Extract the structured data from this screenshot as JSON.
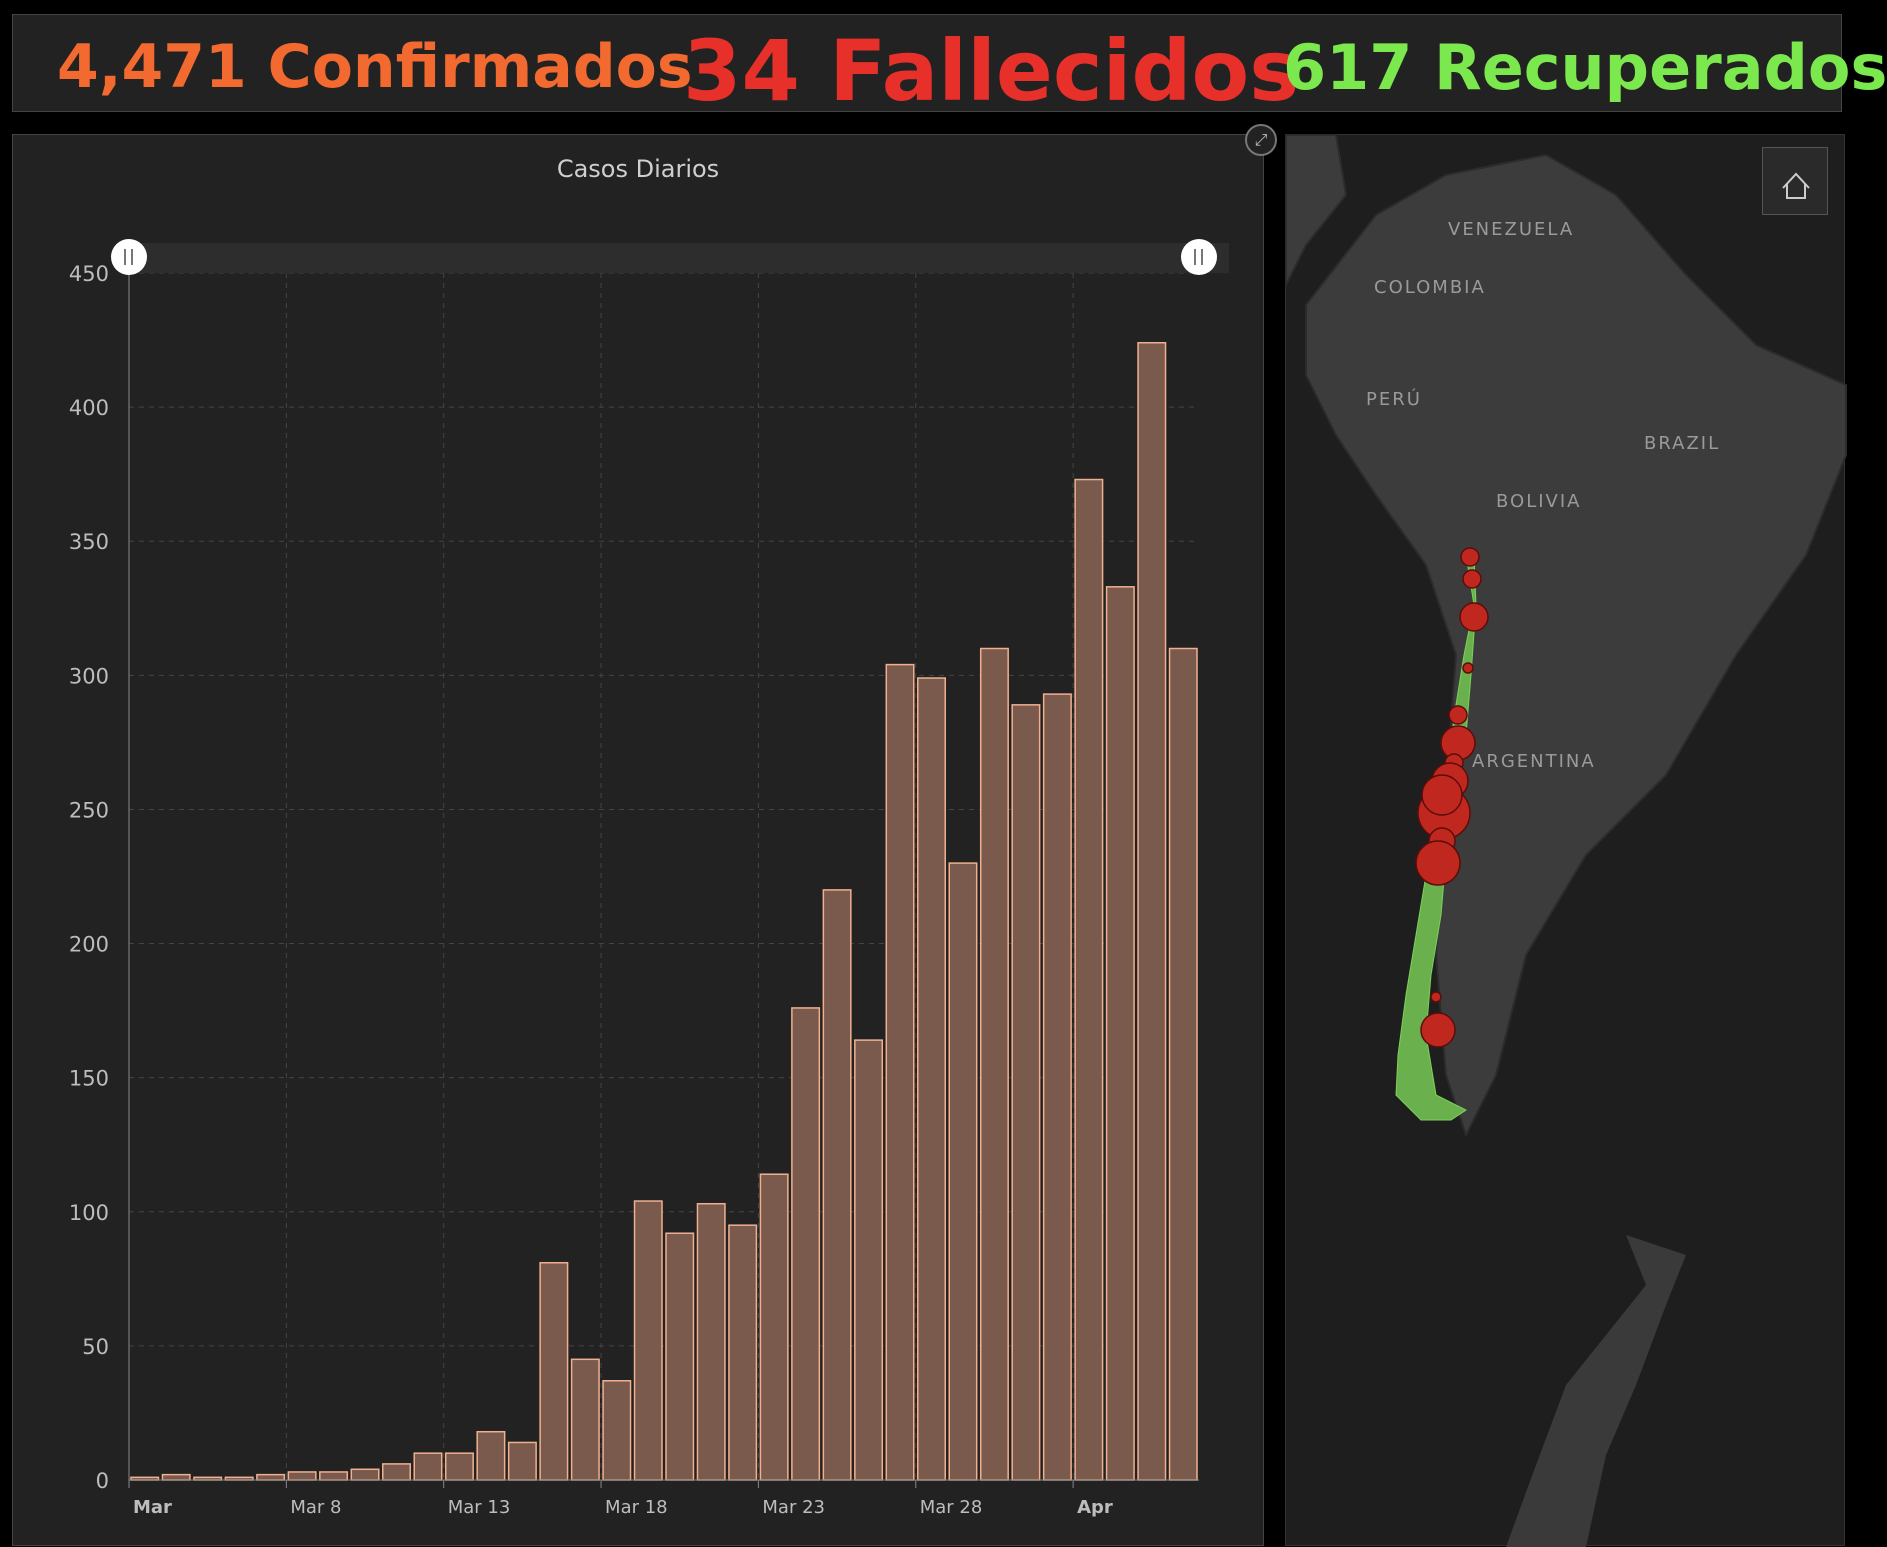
{
  "stats": {
    "confirmed": "4,471 Confirmados",
    "deaths": "34 Fallecidos",
    "recovered": "617 Recuperados",
    "confirmed_color": "#f26a2f",
    "deaths_color": "#e8302a",
    "recovered_color": "#7be84e"
  },
  "map": {
    "labels": [
      "VENEZUELA",
      "COLOMBIA",
      "PERÚ",
      "BRAZIL",
      "BOLIVIA",
      "ARGENTINA"
    ],
    "home_icon": "home-icon",
    "expand_icon": "expand-icon"
  },
  "chart_data": {
    "type": "bar",
    "title": "Casos Diarios",
    "xlabel": "",
    "ylabel": "",
    "ylim": [
      0,
      450
    ],
    "yticks": [
      0,
      50,
      100,
      150,
      200,
      250,
      300,
      350,
      400,
      450
    ],
    "xtick_labels": [
      "Mar",
      "Mar 8",
      "Mar 13",
      "Mar 18",
      "Mar 23",
      "Mar 28",
      "Apr"
    ],
    "categories": [
      "Mar 3",
      "Mar 4",
      "Mar 5",
      "Mar 6",
      "Mar 7",
      "Mar 8",
      "Mar 9",
      "Mar 10",
      "Mar 11",
      "Mar 12",
      "Mar 13",
      "Mar 14",
      "Mar 15",
      "Mar 16",
      "Mar 17",
      "Mar 18",
      "Mar 19",
      "Mar 20",
      "Mar 21",
      "Mar 22",
      "Mar 23",
      "Mar 24",
      "Mar 25",
      "Mar 26",
      "Mar 27",
      "Mar 28",
      "Mar 29",
      "Mar 30",
      "Mar 31",
      "Apr 1",
      "Apr 2",
      "Apr 3",
      "Apr 4",
      "Apr 5"
    ],
    "values": [
      1,
      2,
      1,
      1,
      2,
      3,
      3,
      4,
      6,
      10,
      10,
      18,
      14,
      81,
      45,
      37,
      104,
      92,
      103,
      95,
      114,
      176,
      220,
      164,
      304,
      299,
      230,
      310,
      289,
      293,
      373,
      333,
      424,
      310
    ],
    "bar_fill": "#7a5a4d",
    "bar_stroke": "#f0b090",
    "grid": true
  }
}
